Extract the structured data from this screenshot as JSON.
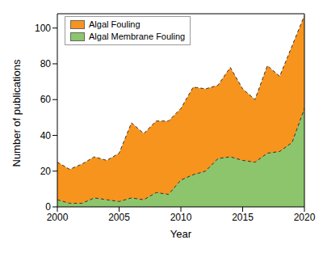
{
  "chart_data": {
    "type": "area",
    "x_label": "Year",
    "y_label": "Number of publications",
    "x": [
      2000,
      2001,
      2002,
      2003,
      2004,
      2005,
      2006,
      2007,
      2008,
      2009,
      2010,
      2011,
      2012,
      2013,
      2014,
      2015,
      2016,
      2017,
      2018,
      2019,
      2020
    ],
    "series": [
      {
        "name": "Algal Fouling",
        "color": "#f7941d",
        "line_style": "dashed",
        "values": [
          25,
          21,
          24,
          28,
          26,
          30,
          47,
          41,
          48,
          48,
          55,
          67,
          66,
          68,
          78,
          66,
          60,
          79,
          73,
          90,
          107
        ]
      },
      {
        "name": "Algal Membrane Fouling",
        "color": "#8dc56c",
        "line_style": "dashed",
        "values": [
          4,
          2,
          2,
          5,
          4,
          3,
          5,
          4,
          8,
          7,
          15,
          18,
          20,
          27,
          28,
          26,
          25,
          30,
          31,
          36,
          55
        ]
      }
    ],
    "xlim": [
      2000,
      2020
    ],
    "xticks": [
      2000,
      2005,
      2010,
      2015,
      2020
    ],
    "ylim": [
      0,
      108
    ],
    "yticks": [
      0,
      20,
      40,
      60,
      80,
      100
    ],
    "stacked": false,
    "grid": false,
    "legend": "upper left"
  }
}
